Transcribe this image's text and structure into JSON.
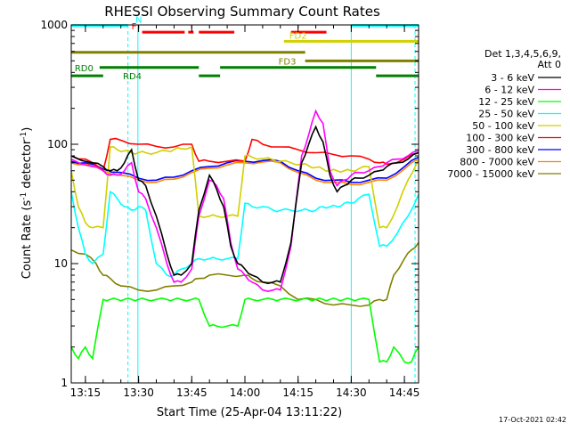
{
  "chart_data": {
    "type": "line",
    "title": "RHESSI Observing Summary Count Rates",
    "xlabel": "Start Time (25-Apr-04 13:11:22)",
    "ylabel_main": "Count Rate (s",
    "ylabel_sup1": "-1",
    "ylabel_mid": " detector",
    "ylabel_sup2": "-1",
    "ylabel_end": ")",
    "footer": "17-Oct-2021 02:42",
    "yscale": "log",
    "ylim": [
      1,
      1000
    ],
    "xlim": [
      791,
      889
    ],
    "x_ticks": [
      {
        "v": 795,
        "label": "13:15"
      },
      {
        "v": 810,
        "label": "13:30"
      },
      {
        "v": 825,
        "label": "13:45"
      },
      {
        "v": 840,
        "label": "14:00"
      },
      {
        "v": 855,
        "label": "14:15"
      },
      {
        "v": 870,
        "label": "14:30"
      },
      {
        "v": 885,
        "label": "14:45"
      }
    ],
    "y_ticks": [
      {
        "v": 1,
        "label": "1"
      },
      {
        "v": 10,
        "label": "10"
      },
      {
        "v": 100,
        "label": "100"
      },
      {
        "v": 1000,
        "label": "1000"
      }
    ],
    "legend": {
      "header": [
        "Det 1,3,4,5,6,9,",
        "Att 0"
      ],
      "position": "right"
    },
    "series": [
      {
        "name": "3 - 6 keV",
        "color": "#000000",
        "x": [
          791,
          797,
          800,
          802,
          804,
          806,
          808,
          810,
          812,
          815,
          818,
          820,
          822,
          825,
          827,
          830,
          832,
          834,
          836,
          838,
          840,
          842,
          845,
          848,
          850,
          853,
          856,
          858,
          860,
          862,
          864,
          866,
          868,
          870,
          872,
          875,
          878,
          880,
          883,
          886,
          889
        ],
        "y": [
          80,
          70,
          65,
          60,
          60,
          70,
          90,
          50,
          45,
          25,
          12,
          8,
          8,
          10,
          28,
          55,
          42,
          30,
          14,
          10,
          9,
          8,
          7,
          7,
          7,
          15,
          70,
          100,
          140,
          105,
          55,
          40,
          45,
          50,
          52,
          55,
          60,
          65,
          70,
          75,
          85
        ]
      },
      {
        "name": "6 - 12 keV",
        "color": "#ff00ff",
        "x": [
          791,
          797,
          800,
          802,
          804,
          806,
          808,
          810,
          812,
          815,
          818,
          820,
          822,
          825,
          827,
          830,
          832,
          834,
          836,
          838,
          840,
          842,
          845,
          848,
          850,
          853,
          856,
          858,
          860,
          862,
          864,
          866,
          868,
          870,
          872,
          875,
          878,
          880,
          883,
          886,
          889
        ],
        "y": [
          75,
          65,
          60,
          55,
          55,
          60,
          70,
          40,
          35,
          20,
          10,
          7,
          7,
          9,
          25,
          50,
          45,
          35,
          15,
          9,
          8,
          7,
          6,
          6,
          6,
          14,
          80,
          120,
          190,
          150,
          60,
          45,
          50,
          55,
          58,
          60,
          65,
          70,
          75,
          80,
          88
        ]
      },
      {
        "name": "12 - 25 keV",
        "color": "#00ff00",
        "x": [
          791,
          793,
          795,
          797,
          800,
          802,
          804,
          806,
          808,
          810,
          812,
          815,
          818,
          820,
          822,
          825,
          827,
          830,
          832,
          835,
          838,
          840,
          842,
          845,
          848,
          850,
          853,
          856,
          858,
          860,
          862,
          864,
          866,
          868,
          870,
          872,
          875,
          878,
          880,
          882,
          885,
          887,
          889
        ],
        "y": [
          2,
          1.6,
          2,
          1.6,
          5,
          5,
          5,
          5,
          5,
          5,
          5,
          5,
          5,
          5,
          5,
          5,
          5,
          3,
          3,
          3,
          3,
          5,
          5,
          5,
          5,
          5,
          5,
          5,
          5,
          5,
          5,
          5,
          5,
          5,
          5,
          5,
          5,
          1.5,
          1.5,
          2,
          1.5,
          1.5,
          2
        ]
      },
      {
        "name": "25 - 50 keV",
        "color": "#00ffff",
        "x": [
          791,
          793,
          795,
          797,
          800,
          802,
          804,
          806,
          808,
          810,
          812,
          815,
          818,
          820,
          822,
          825,
          827,
          830,
          832,
          835,
          838,
          840,
          842,
          845,
          848,
          850,
          853,
          856,
          858,
          860,
          862,
          864,
          866,
          868,
          870,
          872,
          875,
          878,
          880,
          883,
          886,
          889
        ],
        "y": [
          40,
          20,
          12,
          10,
          12,
          40,
          35,
          30,
          28,
          30,
          28,
          10,
          8,
          8,
          9,
          10,
          11,
          11,
          11,
          11,
          11,
          32,
          30,
          30,
          28,
          28,
          28,
          28,
          28,
          28,
          30,
          30,
          30,
          32,
          32,
          35,
          38,
          14,
          14,
          18,
          25,
          38
        ]
      },
      {
        "name": "50 - 100 keV",
        "color": "#d0d000",
        "x": [
          791,
          793,
          795,
          797,
          800,
          802,
          804,
          806,
          808,
          810,
          812,
          815,
          818,
          820,
          822,
          825,
          827,
          830,
          832,
          835,
          838,
          840,
          842,
          845,
          848,
          850,
          853,
          856,
          858,
          860,
          862,
          864,
          866,
          868,
          870,
          872,
          875,
          878,
          880,
          883,
          886,
          889
        ],
        "y": [
          60,
          30,
          22,
          20,
          20,
          95,
          90,
          88,
          85,
          85,
          85,
          85,
          88,
          90,
          92,
          95,
          25,
          25,
          25,
          25,
          25,
          80,
          78,
          76,
          74,
          72,
          70,
          68,
          66,
          64,
          62,
          60,
          60,
          60,
          60,
          62,
          65,
          20,
          20,
          30,
          50,
          75
        ]
      },
      {
        "name": "100 - 300 keV",
        "color": "#ff0000",
        "x": [
          791,
          795,
          800,
          802,
          805,
          810,
          815,
          820,
          825,
          827,
          830,
          835,
          840,
          842,
          845,
          850,
          855,
          860,
          865,
          870,
          875,
          878,
          880,
          885,
          889
        ],
        "y": [
          80,
          75,
          60,
          110,
          108,
          100,
          96,
          95,
          100,
          72,
          72,
          72,
          72,
          110,
          100,
          95,
          90,
          85,
          82,
          80,
          75,
          70,
          68,
          75,
          85
        ]
      },
      {
        "name": "300 - 800 keV",
        "color": "#0000ff",
        "x": [
          791,
          795,
          800,
          805,
          810,
          815,
          820,
          825,
          830,
          835,
          840,
          845,
          850,
          855,
          860,
          865,
          870,
          875,
          880,
          885,
          889
        ],
        "y": [
          72,
          70,
          62,
          58,
          52,
          50,
          53,
          60,
          65,
          70,
          72,
          73,
          72,
          60,
          52,
          50,
          48,
          50,
          52,
          65,
          78
        ]
      },
      {
        "name": "800 - 7000 keV",
        "color": "#ff8000",
        "x": [
          791,
          795,
          800,
          805,
          810,
          815,
          820,
          825,
          830,
          835,
          840,
          845,
          850,
          855,
          860,
          865,
          870,
          875,
          880,
          885,
          889
        ],
        "y": [
          70,
          68,
          60,
          55,
          50,
          48,
          51,
          58,
          63,
          67,
          70,
          71,
          70,
          58,
          50,
          48,
          46,
          48,
          50,
          62,
          75
        ]
      },
      {
        "name": "7000 - 15000 keV",
        "color": "#808000",
        "x": [
          791,
          795,
          798,
          800,
          802,
          805,
          810,
          815,
          820,
          825,
          827,
          830,
          835,
          840,
          842,
          845,
          850,
          855,
          860,
          865,
          870,
          875,
          878,
          880,
          882,
          885,
          887,
          889
        ],
        "y": [
          13,
          12,
          10,
          8,
          7.5,
          6.5,
          6,
          6,
          6.5,
          7,
          7.5,
          8,
          8,
          8,
          7.5,
          7,
          6.5,
          5,
          5,
          4.5,
          4.5,
          4.5,
          5,
          5,
          8,
          11,
          13,
          15
        ]
      }
    ],
    "state_bars": [
      {
        "label": "N",
        "color": "#00ffff",
        "segments": [
          [
            791,
            807
          ],
          [
            870,
            889
          ]
        ],
        "level": 990
      },
      {
        "label": "F",
        "color": "#ff0000",
        "segments": [
          [
            811,
            823
          ],
          [
            824,
            825.5
          ],
          [
            827,
            837
          ],
          [
            853,
            863
          ]
        ],
        "level": 870
      },
      {
        "label": "FD2",
        "color": "#d0d000",
        "segments": [
          [
            851,
            889
          ]
        ],
        "level": 730
      },
      {
        "label": "",
        "color": "#808000",
        "segments": [
          [
            791,
            857
          ]
        ],
        "level": 590
      },
      {
        "label": "FD3",
        "color": "#808000",
        "segments": [
          [
            857,
            889
          ]
        ],
        "level": 500
      },
      {
        "label": "RD0",
        "color": "#008000",
        "segments": [
          [
            799,
            827
          ],
          [
            833,
            877
          ]
        ],
        "level": 440
      },
      {
        "label": "RD4",
        "color": "#008000",
        "segments": [
          [
            791,
            800
          ],
          [
            827,
            833
          ],
          [
            877,
            889
          ]
        ],
        "level": 375
      }
    ],
    "vlines": [
      {
        "x": 809.8,
        "color": "#00ffff",
        "style": "solid"
      },
      {
        "x": 807,
        "color": "#00ffff",
        "style": "dashed"
      },
      {
        "x": 870,
        "color": "#00ffff",
        "style": "solid"
      },
      {
        "x": 888,
        "color": "#00ffff",
        "style": "dashed"
      }
    ],
    "grid": false
  }
}
